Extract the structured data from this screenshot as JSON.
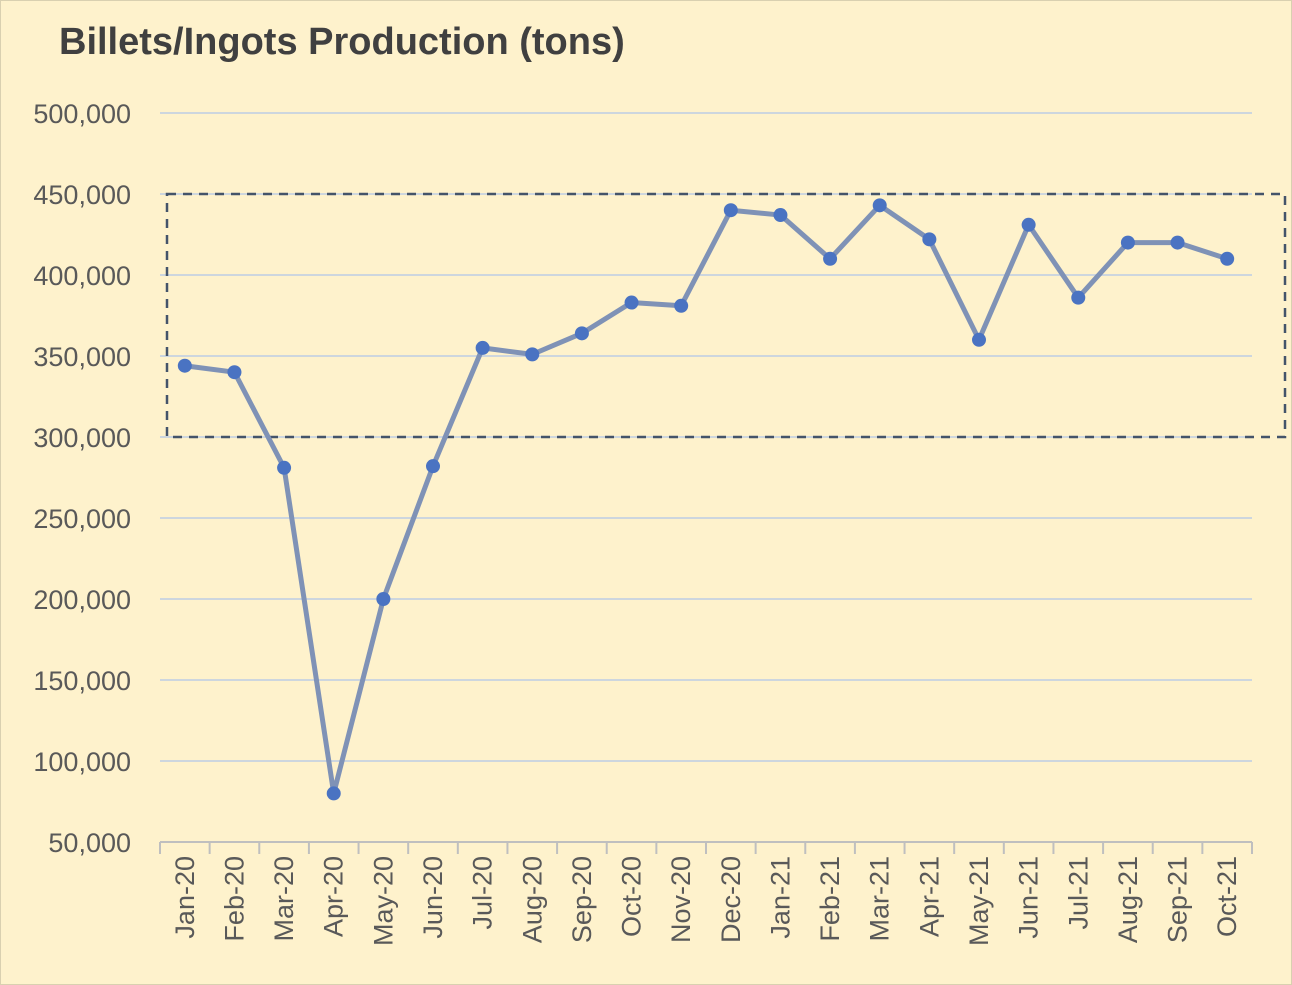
{
  "chart_data": {
    "type": "line",
    "title": "Billets/Ingots Production (tons)",
    "xlabel": "",
    "ylabel": "",
    "ylim": [
      50000,
      500000
    ],
    "yticks": [
      50000,
      100000,
      150000,
      200000,
      250000,
      300000,
      350000,
      400000,
      450000,
      500000
    ],
    "ytick_labels": [
      "50,000",
      "100,000",
      "150,000",
      "200,000",
      "250,000",
      "300,000",
      "350,000",
      "400,000",
      "450,000",
      "500,000"
    ],
    "grid": true,
    "legend": "none",
    "categories": [
      "Jan-20",
      "Feb-20",
      "Mar-20",
      "Apr-20",
      "May-20",
      "Jun-20",
      "Jul-20",
      "Aug-20",
      "Sep-20",
      "Oct-20",
      "Nov-20",
      "Dec-20",
      "Jan-21",
      "Feb-21",
      "Mar-21",
      "Apr-21",
      "May-21",
      "Jun-21",
      "Jul-21",
      "Aug-21",
      "Sep-21",
      "Oct-21"
    ],
    "series": [
      {
        "values": [
          344000,
          340000,
          281000,
          80000,
          200000,
          282000,
          355000,
          351000,
          364000,
          383000,
          381000,
          440000,
          437000,
          410000,
          443000,
          422000,
          360000,
          431000,
          386000,
          420000,
          420000,
          410000
        ]
      }
    ],
    "annotations": [
      {
        "type": "dashed-rectangle",
        "y_range": [
          300000,
          450000
        ],
        "x_range": [
          "Jan-20",
          "Oct-21"
        ]
      }
    ],
    "colors": {
      "background": "#fef2cc",
      "line": "#7f92b6",
      "marker": "#4a73c2",
      "grid": "#cdd6de",
      "axis": "#bfbfbf",
      "title": "#404040",
      "tick": "#595959",
      "annotation": "#44546a"
    }
  }
}
